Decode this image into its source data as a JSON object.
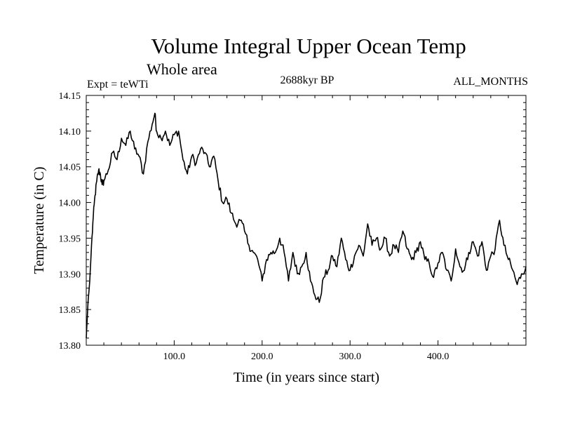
{
  "chart_data": {
    "type": "line",
    "title": "Volume Integral Upper Ocean Temp",
    "subtitle": "Whole area",
    "annotations": {
      "experiment": "Expt = teWTi",
      "period": "2688kyr BP",
      "months": "ALL_MONTHS"
    },
    "xlabel": "Time (in years since start)",
    "ylabel": "Temperature (in C)",
    "xlim": [
      0,
      500
    ],
    "ylim": [
      13.8,
      14.15
    ],
    "xticks": [
      100,
      200,
      300,
      400
    ],
    "xtick_labels": [
      "100.0",
      "200.0",
      "300.0",
      "400.0"
    ],
    "yticks": [
      13.8,
      13.85,
      13.9,
      13.95,
      14.0,
      14.05,
      14.1,
      14.15
    ],
    "ytick_labels": [
      "13.80",
      "13.85",
      "13.90",
      "13.95",
      "14.00",
      "14.05",
      "14.10",
      "14.15"
    ],
    "grid": false,
    "series": [
      {
        "name": "teWTi",
        "color": "#000000",
        "x": [
          0,
          2,
          4,
          6,
          8,
          10,
          12,
          14,
          16,
          18,
          20,
          25,
          30,
          35,
          40,
          45,
          50,
          55,
          60,
          65,
          70,
          75,
          78,
          80,
          85,
          90,
          95,
          100,
          105,
          110,
          115,
          120,
          125,
          130,
          135,
          140,
          145,
          150,
          155,
          160,
          165,
          170,
          175,
          180,
          185,
          190,
          195,
          200,
          205,
          210,
          215,
          220,
          225,
          230,
          235,
          240,
          245,
          250,
          255,
          260,
          265,
          270,
          275,
          280,
          285,
          290,
          295,
          300,
          305,
          310,
          315,
          320,
          325,
          330,
          335,
          340,
          345,
          350,
          355,
          360,
          365,
          370,
          375,
          380,
          385,
          390,
          395,
          400,
          405,
          410,
          415,
          420,
          425,
          430,
          435,
          440,
          445,
          450,
          455,
          460,
          465,
          470,
          475,
          480,
          485,
          490,
          495,
          500
        ],
        "y": [
          13.81,
          13.86,
          13.89,
          13.94,
          13.98,
          14.01,
          14.03,
          14.045,
          14.04,
          14.025,
          14.03,
          14.045,
          14.07,
          14.06,
          14.09,
          14.08,
          14.1,
          14.075,
          14.065,
          14.04,
          14.085,
          14.11,
          14.125,
          14.1,
          14.09,
          14.1,
          14.08,
          14.095,
          14.1,
          14.06,
          14.04,
          14.065,
          14.055,
          14.075,
          14.07,
          14.05,
          14.065,
          14.03,
          14.0,
          14.005,
          13.985,
          13.97,
          13.975,
          13.96,
          13.94,
          13.93,
          13.92,
          13.89,
          13.92,
          13.93,
          13.93,
          13.95,
          13.93,
          13.89,
          13.93,
          13.9,
          13.91,
          13.93,
          13.89,
          13.87,
          13.86,
          13.895,
          13.905,
          13.925,
          13.91,
          13.95,
          13.92,
          13.905,
          13.925,
          13.94,
          13.925,
          13.97,
          13.94,
          13.95,
          13.935,
          13.95,
          13.925,
          13.94,
          13.93,
          13.96,
          13.935,
          13.92,
          13.93,
          13.945,
          13.92,
          13.915,
          13.895,
          13.915,
          13.93,
          13.905,
          13.89,
          13.935,
          13.91,
          13.905,
          13.93,
          13.945,
          13.925,
          13.945,
          13.905,
          13.925,
          13.935,
          13.975,
          13.94,
          13.92,
          13.905,
          13.885,
          13.9,
          13.91
        ]
      }
    ]
  }
}
